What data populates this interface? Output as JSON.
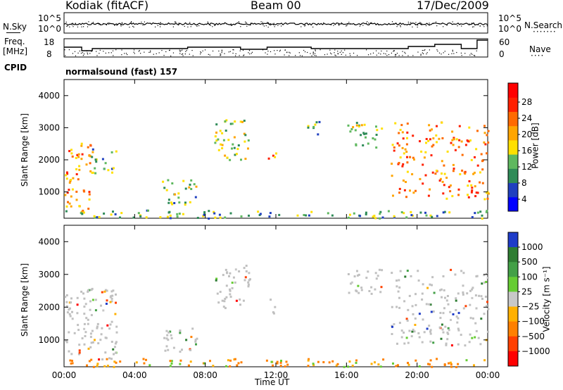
{
  "header": {
    "title": "Kodiak (fitACF)",
    "beam": "Beam 00",
    "date": "17/Dec/2009"
  },
  "top_panels": {
    "nsky_label": "N.Sky",
    "nsearch_label": "N.Search",
    "noise_ticks_left": [
      "10^5",
      "10^0"
    ],
    "noise_ticks_right": [
      "10^5",
      "10^0"
    ],
    "freq_label_1": "Freq.",
    "freq_label_2": "[MHz]",
    "freq_ticks": [
      "18",
      "8"
    ],
    "nave_ticks": [
      "60",
      "0"
    ],
    "nave_label": "Nave",
    "cpid_label": "CPID",
    "cpid_text": "normalsound (fast) 157"
  },
  "colors": {
    "power_scale": [
      "#0000ff",
      "#1f3fbf",
      "#2e8b57",
      "#5fb85f",
      "#ffe000",
      "#ffa500",
      "#ff6a00",
      "#ff2000",
      "#ff0000"
    ],
    "velocity_scale": [
      "#1e3cc8",
      "#2e7d32",
      "#43a047",
      "#66cc33",
      "#c8c8c8",
      "#ffb000",
      "#ff8000",
      "#ff4000",
      "#ff0000"
    ],
    "ground_scatter": "#c0c0c0"
  },
  "chart_data": [
    {
      "type": "heatmap",
      "name": "power",
      "ylabel": "Slant Range [km]",
      "yticks": [
        "4000",
        "3000",
        "2000",
        "1000"
      ],
      "ylim": [
        180,
        4500
      ],
      "xlim_hours": [
        0,
        24
      ],
      "colorbar_label": "Power [dB]",
      "colorbar_ticks": [
        "28",
        "24",
        "20",
        "16",
        "12",
        "8",
        "4"
      ],
      "colorbar_range": [
        0,
        30
      ],
      "regions": [
        {
          "t0": 0.0,
          "t1": 1.5,
          "r0": 400,
          "r1": 2600,
          "level": 18
        },
        {
          "t0": 1.5,
          "t1": 3.0,
          "r0": 1600,
          "r1": 2400,
          "level": 10
        },
        {
          "t0": 0.0,
          "t1": 24.0,
          "r0": 200,
          "r1": 450,
          "level": 9
        },
        {
          "t0": 5.5,
          "t1": 7.5,
          "r0": 600,
          "r1": 1400,
          "level": 10
        },
        {
          "t0": 8.5,
          "t1": 10.5,
          "r0": 2000,
          "r1": 3300,
          "level": 12
        },
        {
          "t0": 11.5,
          "t1": 12.0,
          "r0": 1800,
          "r1": 2300,
          "level": 18
        },
        {
          "t0": 13.5,
          "t1": 14.5,
          "r0": 2800,
          "r1": 3300,
          "level": 8
        },
        {
          "t0": 16.0,
          "t1": 18.0,
          "r0": 2400,
          "r1": 3200,
          "level": 11
        },
        {
          "t0": 18.5,
          "t1": 24.0,
          "r0": 800,
          "r1": 3200,
          "level": 19
        }
      ]
    },
    {
      "type": "heatmap",
      "name": "velocity",
      "ylabel": "Slant Range [km]",
      "yticks": [
        "4000",
        "3000",
        "2000",
        "1000"
      ],
      "ylim": [
        180,
        4500
      ],
      "xlim_hours": [
        0,
        24
      ],
      "xticks": [
        "00:00",
        "04:00",
        "08:00",
        "12:00",
        "16:00",
        "20:00",
        "00:00"
      ],
      "xlabel": "Time UT",
      "colorbar_label": "Velocity [m s⁻¹]",
      "colorbar_ticks": [
        "1000",
        "500",
        "100",
        "25",
        "−25",
        "−100",
        "−500",
        "−1000"
      ],
      "regions": [
        {
          "t0": 0.0,
          "t1": 3.0,
          "r0": 400,
          "r1": 2600,
          "kind": "ground"
        },
        {
          "t0": 0.0,
          "t1": 24.0,
          "r0": 200,
          "r1": 450,
          "kind": "neg"
        },
        {
          "t0": 5.5,
          "t1": 7.5,
          "r0": 600,
          "r1": 1400,
          "kind": "ground"
        },
        {
          "t0": 8.5,
          "t1": 10.5,
          "r0": 2000,
          "r1": 3300,
          "kind": "ground"
        },
        {
          "t0": 11.5,
          "t1": 12.0,
          "r0": 1800,
          "r1": 2300,
          "kind": "ground"
        },
        {
          "t0": 16.0,
          "t1": 18.0,
          "r0": 2400,
          "r1": 3200,
          "kind": "ground"
        },
        {
          "t0": 18.5,
          "t1": 24.0,
          "r0": 800,
          "r1": 3200,
          "kind": "ground"
        }
      ]
    }
  ]
}
